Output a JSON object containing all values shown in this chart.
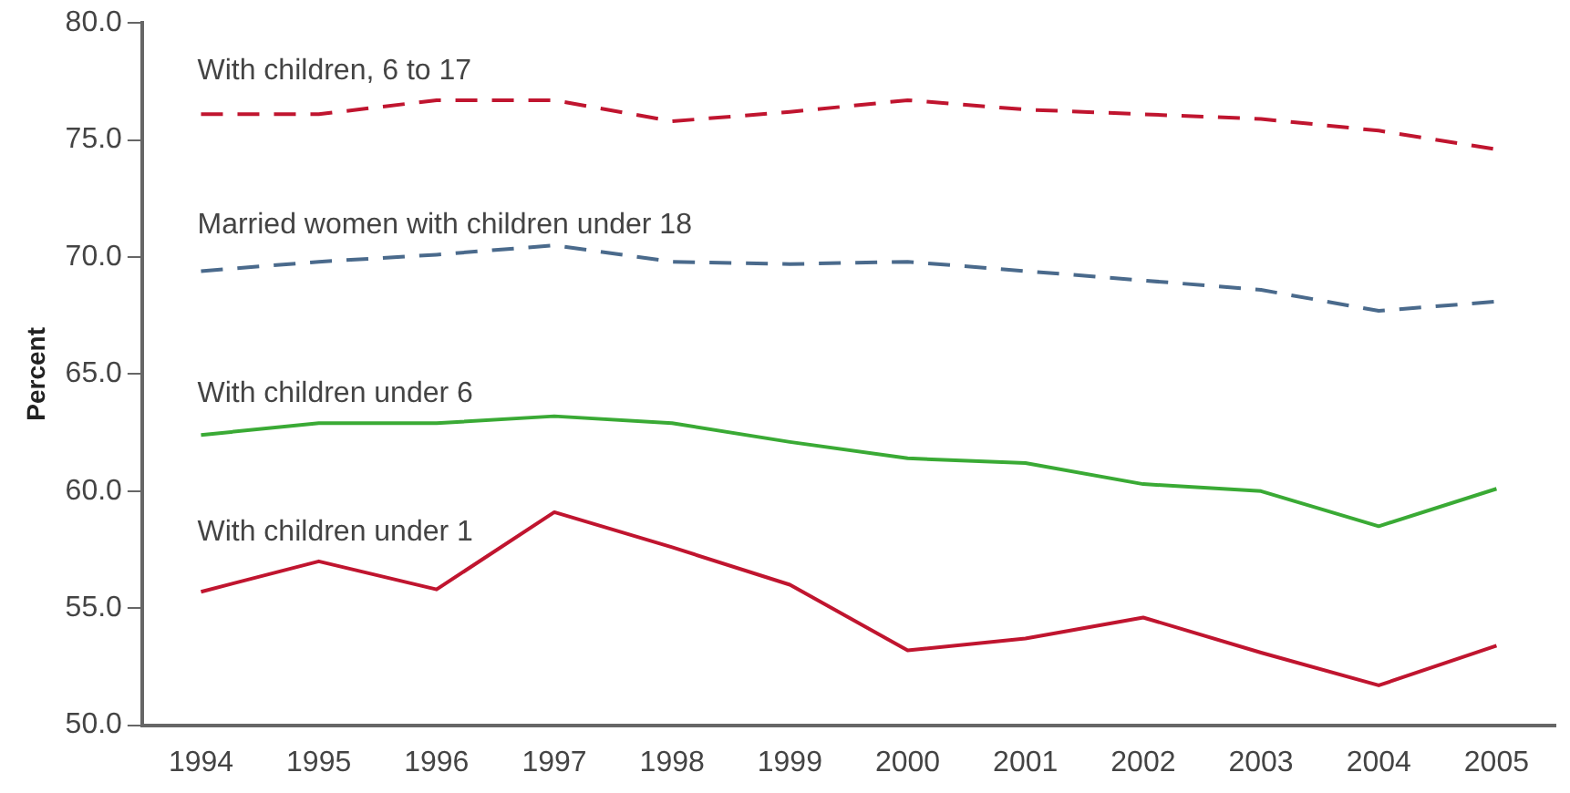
{
  "chart_data": {
    "type": "line",
    "ylabel": "Percent",
    "categories": [
      "1994",
      "1995",
      "1996",
      "1997",
      "1998",
      "1999",
      "2000",
      "2001",
      "2002",
      "2003",
      "2004",
      "2005"
    ],
    "series": [
      {
        "name": "With children, 6 to 17",
        "color": "#c0152f",
        "line_style": "dashed",
        "values": [
          76.1,
          76.1,
          76.7,
          76.7,
          75.8,
          76.2,
          76.7,
          76.3,
          76.1,
          75.9,
          75.4,
          74.6
        ]
      },
      {
        "name": "Married women with children under 18",
        "color": "#4a6a8c",
        "line_style": "dashed",
        "values": [
          69.4,
          69.8,
          70.1,
          70.5,
          69.8,
          69.7,
          69.8,
          69.4,
          69.0,
          68.6,
          67.7,
          68.1
        ]
      },
      {
        "name": "With children under 6",
        "color": "#3aaa35",
        "line_style": "solid",
        "values": [
          62.4,
          62.9,
          62.9,
          63.2,
          62.9,
          62.1,
          61.4,
          61.2,
          60.3,
          60.0,
          58.5,
          60.1
        ]
      },
      {
        "name": "With children under 1",
        "color": "#c0152f",
        "line_style": "solid",
        "values": [
          55.7,
          57.0,
          55.8,
          59.1,
          57.6,
          56.0,
          53.2,
          53.7,
          54.6,
          53.1,
          51.7,
          53.4
        ]
      }
    ],
    "ylim": [
      50,
      80
    ],
    "yticks": [
      {
        "value": 50,
        "label": "50.0"
      },
      {
        "value": 55,
        "label": "55.0"
      },
      {
        "value": 60,
        "label": "60.0"
      },
      {
        "value": 65,
        "label": "65.0"
      },
      {
        "value": 70,
        "label": "70.0"
      },
      {
        "value": 75,
        "label": "75.0"
      },
      {
        "value": 80,
        "label": "80.0"
      }
    ],
    "grid": false,
    "legend": false,
    "marker": "none"
  }
}
